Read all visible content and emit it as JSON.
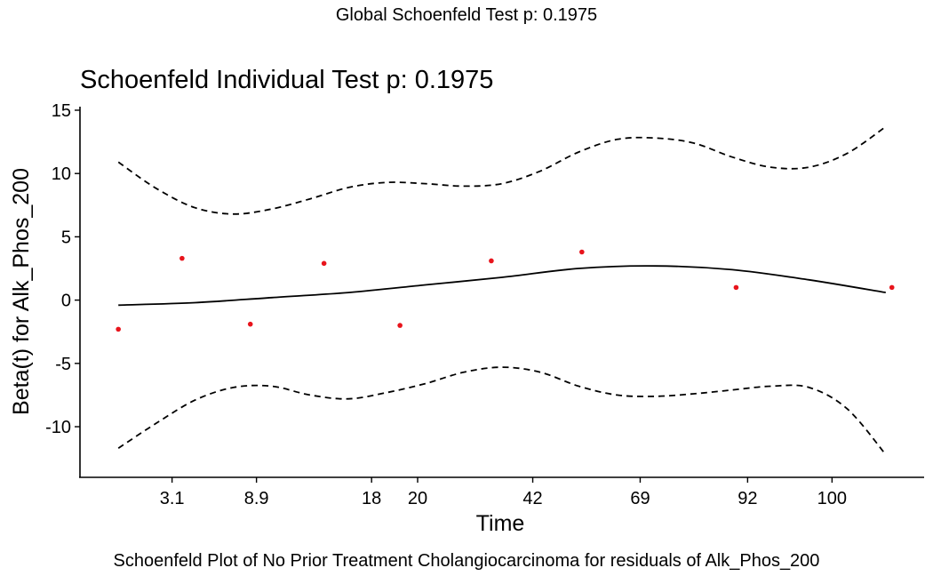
{
  "global_title": "Global Schoenfeld Test p: 0.1975",
  "caption": "Schoenfeld Plot of No Prior Treatment Cholangiocarcinoma for residuals of Alk_Phos_200",
  "colors": {
    "points": "#e8141c",
    "lines": "#000000"
  },
  "chart_data": {
    "type": "scatter",
    "title": "Schoenfeld Individual Test p: 0.1975",
    "xlabel": "Time",
    "ylabel": "Beta(t) for Alk_Phos_200",
    "ylim": [
      -14,
      15
    ],
    "xlim": [
      0,
      11
    ],
    "x_ticks": [
      {
        "pos": 1.2,
        "label": "3.1"
      },
      {
        "pos": 2.3,
        "label": "8.9"
      },
      {
        "pos": 3.8,
        "label": "18"
      },
      {
        "pos": 4.4,
        "label": "20"
      },
      {
        "pos": 5.9,
        "label": "42"
      },
      {
        "pos": 7.3,
        "label": "69"
      },
      {
        "pos": 8.7,
        "label": "92"
      },
      {
        "pos": 9.8,
        "label": "100"
      }
    ],
    "y_ticks": [
      15,
      10,
      5,
      0,
      -5,
      -10
    ],
    "grid": false,
    "series": [
      {
        "type": "points",
        "x": [
          0.5,
          1.33,
          2.22,
          3.18,
          4.17,
          5.36,
          6.54,
          8.55,
          10.58
        ],
        "y": [
          -2.3,
          3.3,
          -1.9,
          2.9,
          -2.0,
          3.1,
          3.8,
          1.0,
          1.0
        ]
      },
      {
        "type": "line",
        "x": [
          0.5,
          1.5,
          2.5,
          3.5,
          4.5,
          5.5,
          6.5,
          7.5,
          8.5,
          9.5,
          10.5
        ],
        "y": [
          -0.4,
          -0.2,
          0.2,
          0.6,
          1.2,
          1.8,
          2.5,
          2.7,
          2.4,
          1.6,
          0.6
        ]
      },
      {
        "type": "dashed-upper",
        "x": [
          0.5,
          1.0,
          1.5,
          2.0,
          2.5,
          3.0,
          3.5,
          4.0,
          4.5,
          5.0,
          5.5,
          6.0,
          6.5,
          7.0,
          7.5,
          8.0,
          8.5,
          9.0,
          9.5,
          10.0,
          10.5
        ],
        "y": [
          10.9,
          8.8,
          7.3,
          6.8,
          7.2,
          8.0,
          8.9,
          9.3,
          9.2,
          9.0,
          9.2,
          10.2,
          11.7,
          12.7,
          12.8,
          12.4,
          11.3,
          10.5,
          10.5,
          11.6,
          13.7
        ]
      },
      {
        "type": "dashed-lower",
        "x": [
          0.5,
          1.0,
          1.5,
          2.0,
          2.5,
          3.0,
          3.5,
          4.0,
          4.5,
          5.0,
          5.5,
          6.0,
          6.5,
          7.0,
          7.5,
          8.0,
          8.5,
          9.0,
          9.5,
          10.0,
          10.5
        ],
        "y": [
          -11.7,
          -9.7,
          -7.9,
          -6.9,
          -6.8,
          -7.5,
          -7.8,
          -7.3,
          -6.6,
          -5.7,
          -5.3,
          -5.7,
          -6.8,
          -7.5,
          -7.6,
          -7.4,
          -7.1,
          -6.8,
          -6.9,
          -8.6,
          -12.2
        ]
      }
    ]
  }
}
